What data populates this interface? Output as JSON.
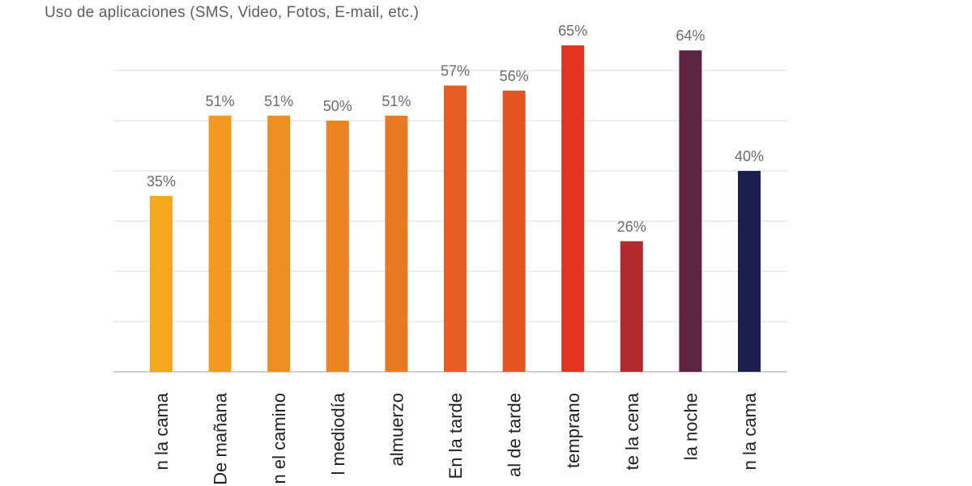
{
  "chart_data": {
    "type": "bar",
    "title": "Uso de aplicaciones (SMS, Video, Fotos, E-mail, etc.)",
    "xlabel": "",
    "ylabel": "",
    "ylim": [
      0,
      70
    ],
    "grid": true,
    "categories": [
      "n la cama",
      "De mañana",
      "n el camino",
      "l mediodía",
      "almuerzo",
      "En la tarde",
      "al de tarde",
      "temprano",
      "te la cena",
      "la noche",
      "n la cama"
    ],
    "values": [
      35,
      51,
      51,
      50,
      51,
      57,
      56,
      65,
      26,
      64,
      40
    ],
    "value_labels": [
      "35%",
      "51%",
      "51%",
      "50%",
      "51%",
      "57%",
      "56%",
      "65%",
      "26%",
      "64%",
      "40%"
    ],
    "colors": [
      "#f5a81b",
      "#f29922",
      "#ef8e20",
      "#ec8421",
      "#ea7a21",
      "#e75e24",
      "#e45423",
      "#e1331f",
      "#b32b2e",
      "#5e2540",
      "#1a1f4f"
    ]
  }
}
